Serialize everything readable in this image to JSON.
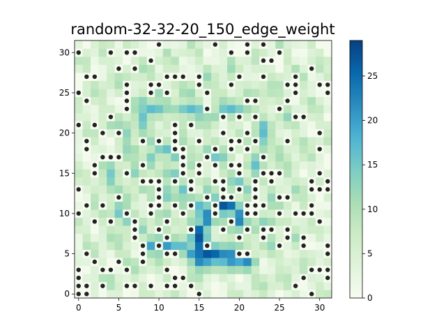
{
  "chart_data": {
    "type": "heatmap",
    "title": "random-32-32-20_150_edge_weight",
    "xlabel": "",
    "ylabel": "",
    "xlim": [
      -0.5,
      31.5
    ],
    "ylim": [
      -0.5,
      31.5
    ],
    "x_ticks": [
      0,
      5,
      10,
      15,
      20,
      25,
      30
    ],
    "y_ticks": [
      0,
      5,
      10,
      15,
      20,
      25,
      30
    ],
    "grid": false,
    "colormap": "GnBu",
    "colormap_stops": [
      "#f7fcf0",
      "#e0f3db",
      "#ccebc5",
      "#a8ddb5",
      "#7bccc4",
      "#4eb3d3",
      "#2b8cbe",
      "#0868ac",
      "#084081"
    ],
    "obstacle_color": "#222222",
    "colorbar": {
      "min": 0,
      "max": 29,
      "ticks": [
        0,
        5,
        10,
        15,
        20,
        25
      ],
      "position": "right"
    },
    "grid_size": 32,
    "obstacles": [
      [
        0,
        30
      ],
      [
        4,
        30
      ],
      [
        6,
        30
      ],
      [
        7,
        30
      ],
      [
        10,
        31
      ],
      [
        17,
        31
      ],
      [
        19,
        30
      ],
      [
        21,
        31
      ],
      [
        21,
        30
      ],
      [
        23,
        31
      ],
      [
        25,
        30
      ],
      [
        9,
        29
      ],
      [
        5,
        28
      ],
      [
        7,
        28
      ],
      [
        1,
        27
      ],
      [
        2,
        27
      ],
      [
        12,
        27
      ],
      [
        13,
        27
      ],
      [
        15,
        27
      ],
      [
        20,
        27
      ],
      [
        23,
        27
      ],
      [
        24,
        29
      ],
      [
        23,
        29
      ],
      [
        27,
        27
      ],
      [
        29,
        28
      ],
      [
        6,
        26
      ],
      [
        9,
        26
      ],
      [
        10,
        26
      ],
      [
        11,
        27
      ],
      [
        15,
        26
      ],
      [
        19,
        26
      ],
      [
        26,
        26
      ],
      [
        27,
        26
      ],
      [
        30,
        26
      ],
      [
        31,
        26
      ],
      [
        0,
        25
      ],
      [
        6,
        25
      ],
      [
        9,
        25
      ],
      [
        11,
        25
      ],
      [
        16,
        25
      ],
      [
        27,
        25
      ],
      [
        31,
        25
      ],
      [
        1,
        24
      ],
      [
        6,
        24
      ],
      [
        21,
        24
      ],
      [
        22,
        24
      ],
      [
        26,
        24
      ],
      [
        6,
        23
      ],
      [
        16,
        23
      ],
      [
        25,
        23
      ],
      [
        4,
        22
      ],
      [
        18,
        22
      ],
      [
        20,
        22
      ],
      [
        22,
        22
      ],
      [
        27,
        22
      ],
      [
        28,
        22
      ],
      [
        0,
        21
      ],
      [
        2,
        21
      ],
      [
        12,
        21
      ],
      [
        14,
        21
      ],
      [
        3,
        20
      ],
      [
        5,
        20
      ],
      [
        12,
        20
      ],
      [
        18,
        20
      ],
      [
        21,
        20
      ],
      [
        30,
        20
      ],
      [
        1,
        19
      ],
      [
        8,
        19
      ],
      [
        10,
        19
      ],
      [
        12,
        19
      ],
      [
        15,
        19
      ],
      [
        19,
        19
      ],
      [
        20,
        19
      ],
      [
        22,
        19
      ],
      [
        26,
        19
      ],
      [
        1,
        18
      ],
      [
        12,
        18
      ],
      [
        13,
        18
      ],
      [
        17,
        18
      ],
      [
        19,
        18
      ],
      [
        21,
        18
      ],
      [
        30,
        18
      ],
      [
        3,
        17
      ],
      [
        4,
        17
      ],
      [
        5,
        17
      ],
      [
        13,
        17
      ],
      [
        16,
        17
      ],
      [
        23,
        17
      ],
      [
        2,
        16
      ],
      [
        8,
        16
      ],
      [
        13,
        16
      ],
      [
        15,
        16
      ],
      [
        17,
        16
      ],
      [
        19,
        16
      ],
      [
        20,
        16
      ],
      [
        2,
        15
      ],
      [
        6,
        15
      ],
      [
        13,
        15
      ],
      [
        15,
        15
      ],
      [
        20,
        15
      ],
      [
        23,
        15
      ],
      [
        24,
        15
      ],
      [
        25,
        15
      ],
      [
        30,
        15
      ],
      [
        8,
        14
      ],
      [
        9,
        14
      ],
      [
        10,
        14
      ],
      [
        12,
        14
      ],
      [
        14,
        14
      ],
      [
        17,
        14
      ],
      [
        18,
        14
      ],
      [
        22,
        14
      ],
      [
        24,
        14
      ],
      [
        29,
        14
      ],
      [
        31,
        14
      ],
      [
        0,
        13
      ],
      [
        10,
        13
      ],
      [
        14,
        13
      ],
      [
        18,
        13
      ],
      [
        20,
        13
      ],
      [
        22,
        13
      ],
      [
        29,
        13
      ],
      [
        30,
        13
      ],
      [
        31,
        13
      ],
      [
        5,
        12
      ],
      [
        10,
        12
      ],
      [
        16,
        12
      ],
      [
        18,
        12
      ],
      [
        19,
        12
      ],
      [
        22,
        12
      ],
      [
        25,
        12
      ],
      [
        26,
        12
      ],
      [
        1,
        11
      ],
      [
        3,
        11
      ],
      [
        9,
        11
      ],
      [
        10,
        11
      ],
      [
        12,
        11
      ],
      [
        14,
        11
      ],
      [
        17,
        11
      ],
      [
        21,
        11
      ],
      [
        22,
        11
      ],
      [
        23,
        11
      ],
      [
        29,
        11
      ],
      [
        0,
        10
      ],
      [
        6,
        10
      ],
      [
        9,
        10
      ],
      [
        13,
        10
      ],
      [
        17,
        10
      ],
      [
        21,
        10
      ],
      [
        22,
        10
      ],
      [
        25,
        10
      ],
      [
        27,
        10
      ],
      [
        28,
        10
      ],
      [
        29,
        10
      ],
      [
        2,
        9
      ],
      [
        4,
        9
      ],
      [
        7,
        9
      ],
      [
        11,
        9
      ],
      [
        19,
        9
      ],
      [
        30,
        9
      ],
      [
        7,
        8
      ],
      [
        10,
        8
      ],
      [
        14,
        8
      ],
      [
        18,
        8
      ],
      [
        21,
        8
      ],
      [
        23,
        8
      ],
      [
        24,
        8
      ],
      [
        26,
        8
      ],
      [
        7,
        7
      ],
      [
        11,
        7
      ],
      [
        20,
        7
      ],
      [
        23,
        7
      ],
      [
        26,
        7
      ],
      [
        28,
        7
      ],
      [
        8,
        6
      ],
      [
        10,
        6
      ],
      [
        16,
        6
      ],
      [
        25,
        6
      ],
      [
        28,
        6
      ],
      [
        31,
        6
      ],
      [
        1,
        5
      ],
      [
        8,
        5
      ],
      [
        11,
        5
      ],
      [
        12,
        5
      ],
      [
        20,
        5
      ],
      [
        21,
        5
      ],
      [
        31,
        5
      ],
      [
        2,
        4
      ],
      [
        5,
        4
      ],
      [
        8,
        4
      ],
      [
        0,
        3
      ],
      [
        3,
        3
      ],
      [
        4,
        3
      ],
      [
        6,
        3
      ],
      [
        11,
        3
      ],
      [
        30,
        3
      ],
      [
        31,
        3
      ],
      [
        29,
        3
      ],
      [
        0,
        2
      ],
      [
        12,
        2
      ],
      [
        13,
        2
      ],
      [
        28,
        2
      ],
      [
        31,
        2
      ],
      [
        0,
        1
      ],
      [
        1,
        1
      ],
      [
        3,
        1
      ],
      [
        6,
        1
      ],
      [
        7,
        1
      ],
      [
        9,
        1
      ],
      [
        11,
        1
      ],
      [
        12,
        1
      ],
      [
        14,
        1
      ],
      [
        27,
        1
      ],
      [
        0,
        0
      ],
      [
        1,
        0
      ],
      [
        15,
        0
      ],
      [
        29,
        0
      ]
    ],
    "hot_paths": [
      {
        "cells": [
          [
            15,
            5
          ],
          [
            16,
            5
          ],
          [
            17,
            5
          ],
          [
            18,
            5
          ],
          [
            19,
            5
          ],
          [
            15,
            6
          ],
          [
            15,
            7
          ],
          [
            15,
            8
          ],
          [
            16,
            9
          ],
          [
            16,
            10
          ],
          [
            17,
            11
          ],
          [
            18,
            11
          ],
          [
            19,
            11
          ],
          [
            20,
            10
          ],
          [
            20,
            9
          ]
        ],
        "value": 24
      },
      {
        "cells": [
          [
            20,
            4
          ],
          [
            21,
            4
          ],
          [
            19,
            4
          ],
          [
            18,
            4
          ],
          [
            17,
            4
          ],
          [
            16,
            4
          ],
          [
            15,
            4
          ],
          [
            14,
            5
          ],
          [
            13,
            6
          ],
          [
            12,
            6
          ],
          [
            11,
            6
          ],
          [
            10,
            6
          ],
          [
            9,
            6
          ]
        ],
        "value": 19
      },
      {
        "cells": [
          [
            8,
            23
          ],
          [
            9,
            23
          ],
          [
            10,
            23
          ],
          [
            11,
            23
          ],
          [
            12,
            23
          ],
          [
            13,
            23
          ],
          [
            14,
            23
          ],
          [
            15,
            23
          ],
          [
            16,
            22
          ],
          [
            17,
            22
          ],
          [
            18,
            23
          ],
          [
            19,
            23
          ],
          [
            20,
            23
          ],
          [
            21,
            23
          ],
          [
            22,
            22
          ],
          [
            23,
            21
          ],
          [
            23,
            20
          ],
          [
            23,
            19
          ],
          [
            23,
            18
          ],
          [
            22,
            17
          ],
          [
            22,
            16
          ]
        ],
        "value": 14
      },
      {
        "cells": [
          [
            8,
            24
          ],
          [
            8,
            22
          ],
          [
            8,
            21
          ],
          [
            8,
            20
          ],
          [
            9,
            19
          ],
          [
            10,
            18
          ],
          [
            11,
            18
          ],
          [
            12,
            17
          ],
          [
            13,
            17
          ]
        ],
        "value": 13
      },
      {
        "cells": [
          [
            4,
            16
          ],
          [
            4,
            15
          ],
          [
            4,
            14
          ],
          [
            4,
            13
          ],
          [
            5,
            12
          ],
          [
            5,
            11
          ],
          [
            5,
            10
          ],
          [
            6,
            9
          ]
        ],
        "value": 12
      },
      {
        "cells": [
          [
            12,
            15
          ],
          [
            12,
            14
          ],
          [
            13,
            13
          ],
          [
            13,
            12
          ],
          [
            14,
            12
          ],
          [
            14,
            11
          ],
          [
            15,
            11
          ],
          [
            15,
            10
          ],
          [
            14,
            9
          ],
          [
            14,
            8
          ],
          [
            14,
            7
          ]
        ],
        "value": 14
      },
      {
        "cells": [
          [
            16,
            18
          ],
          [
            17,
            17
          ],
          [
            18,
            17
          ],
          [
            19,
            16
          ],
          [
            19,
            15
          ],
          [
            19,
            14
          ],
          [
            20,
            14
          ],
          [
            21,
            13
          ],
          [
            21,
            12
          ],
          [
            21,
            11
          ]
        ],
        "value": 12
      },
      {
        "cells": [
          [
            18,
            6
          ],
          [
            19,
            6
          ],
          [
            20,
            6
          ],
          [
            21,
            6
          ],
          [
            21,
            7
          ],
          [
            22,
            8
          ],
          [
            23,
            9
          ],
          [
            24,
            9
          ],
          [
            25,
            9
          ]
        ],
        "value": 10
      },
      {
        "cells": [
          [
            6,
            21
          ],
          [
            6,
            20
          ],
          [
            6,
            19
          ],
          [
            7,
            18
          ],
          [
            7,
            17
          ],
          [
            7,
            16
          ],
          [
            7,
            15
          ]
        ],
        "value": 10
      },
      {
        "cells": [
          [
            12,
            12
          ],
          [
            11,
            12
          ],
          [
            11,
            13
          ],
          [
            11,
            14
          ],
          [
            10,
            15
          ],
          [
            9,
            16
          ],
          [
            9,
            17
          ]
        ],
        "value": 11
      }
    ]
  }
}
